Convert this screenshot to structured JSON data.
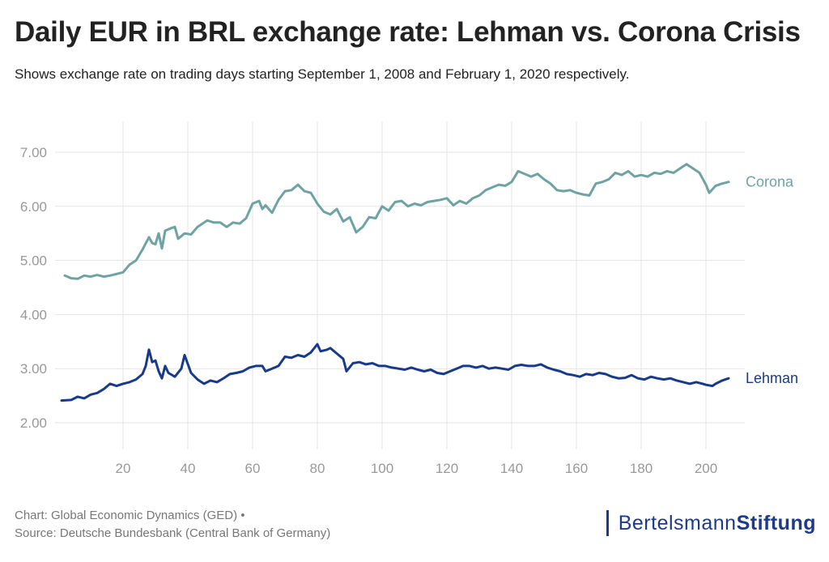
{
  "header": {
    "title": "Daily EUR in BRL exchange rate: Lehman vs. Corona Crisis",
    "subtitle": "Shows exchange rate on trading days starting September 1, 2008 and February 1, 2020 respectively."
  },
  "footer": {
    "credit": "Chart: Global Economic Dynamics (GED) •",
    "source": "Source: Deutsche Bundesbank (Central Bank of Germany)"
  },
  "logo": {
    "part1": "Bertelsmann",
    "part2": "Stiftung"
  },
  "colors": {
    "corona": "#6fa3a3",
    "lehman": "#173a8c",
    "grid": "#e3e3e3",
    "tick": "#999999"
  },
  "chart_data": {
    "type": "line",
    "title": "Daily EUR in BRL exchange rate: Lehman vs. Corona Crisis",
    "xlabel": "",
    "ylabel": "",
    "xlim": [
      0,
      210
    ],
    "ylim": [
      1.5,
      7.5
    ],
    "x_ticks": [
      20,
      40,
      60,
      80,
      100,
      120,
      140,
      160,
      180,
      200
    ],
    "y_ticks": [
      2.0,
      3.0,
      4.0,
      5.0,
      6.0,
      7.0
    ],
    "y_tick_labels": [
      "2.00",
      "3.00",
      "4.00",
      "5.00",
      "6.00",
      "7.00"
    ],
    "legend": "direct labels at line ends",
    "series": [
      {
        "name": "Corona",
        "keypoints": [
          [
            2,
            4.72
          ],
          [
            4,
            4.67
          ],
          [
            6,
            4.66
          ],
          [
            8,
            4.72
          ],
          [
            10,
            4.7
          ],
          [
            12,
            4.73
          ],
          [
            14,
            4.7
          ],
          [
            16,
            4.72
          ],
          [
            18,
            4.75
          ],
          [
            20,
            4.78
          ],
          [
            22,
            4.92
          ],
          [
            24,
            5.0
          ],
          [
            26,
            5.2
          ],
          [
            28,
            5.43
          ],
          [
            29,
            5.32
          ],
          [
            30,
            5.3
          ],
          [
            31,
            5.5
          ],
          [
            32,
            5.22
          ],
          [
            33,
            5.55
          ],
          [
            35,
            5.6
          ],
          [
            36,
            5.62
          ],
          [
            37,
            5.4
          ],
          [
            39,
            5.5
          ],
          [
            41,
            5.48
          ],
          [
            43,
            5.62
          ],
          [
            46,
            5.74
          ],
          [
            48,
            5.7
          ],
          [
            50,
            5.7
          ],
          [
            52,
            5.62
          ],
          [
            54,
            5.7
          ],
          [
            56,
            5.68
          ],
          [
            58,
            5.78
          ],
          [
            60,
            6.05
          ],
          [
            62,
            6.1
          ],
          [
            63,
            5.95
          ],
          [
            64,
            6.02
          ],
          [
            66,
            5.88
          ],
          [
            68,
            6.12
          ],
          [
            70,
            6.28
          ],
          [
            72,
            6.3
          ],
          [
            74,
            6.4
          ],
          [
            76,
            6.28
          ],
          [
            78,
            6.25
          ],
          [
            80,
            6.05
          ],
          [
            82,
            5.9
          ],
          [
            84,
            5.85
          ],
          [
            86,
            5.95
          ],
          [
            88,
            5.72
          ],
          [
            90,
            5.8
          ],
          [
            92,
            5.52
          ],
          [
            94,
            5.62
          ],
          [
            96,
            5.8
          ],
          [
            98,
            5.78
          ],
          [
            100,
            6.0
          ],
          [
            102,
            5.92
          ],
          [
            104,
            6.08
          ],
          [
            106,
            6.1
          ],
          [
            108,
            6.0
          ],
          [
            110,
            6.05
          ],
          [
            112,
            6.02
          ],
          [
            114,
            6.08
          ],
          [
            116,
            6.1
          ],
          [
            118,
            6.12
          ],
          [
            120,
            6.15
          ],
          [
            122,
            6.02
          ],
          [
            124,
            6.1
          ],
          [
            126,
            6.05
          ],
          [
            128,
            6.15
          ],
          [
            130,
            6.2
          ],
          [
            132,
            6.3
          ],
          [
            134,
            6.35
          ],
          [
            136,
            6.4
          ],
          [
            138,
            6.38
          ],
          [
            140,
            6.45
          ],
          [
            142,
            6.65
          ],
          [
            144,
            6.6
          ],
          [
            146,
            6.55
          ],
          [
            148,
            6.6
          ],
          [
            150,
            6.5
          ],
          [
            152,
            6.42
          ],
          [
            154,
            6.3
          ],
          [
            156,
            6.28
          ],
          [
            158,
            6.3
          ],
          [
            160,
            6.25
          ],
          [
            162,
            6.22
          ],
          [
            164,
            6.2
          ],
          [
            166,
            6.42
          ],
          [
            168,
            6.45
          ],
          [
            170,
            6.5
          ],
          [
            172,
            6.62
          ],
          [
            174,
            6.58
          ],
          [
            176,
            6.65
          ],
          [
            178,
            6.55
          ],
          [
            180,
            6.58
          ],
          [
            182,
            6.55
          ],
          [
            184,
            6.62
          ],
          [
            186,
            6.6
          ],
          [
            188,
            6.65
          ],
          [
            190,
            6.62
          ],
          [
            192,
            6.7
          ],
          [
            194,
            6.78
          ],
          [
            196,
            6.7
          ],
          [
            198,
            6.62
          ],
          [
            200,
            6.4
          ],
          [
            201,
            6.25
          ],
          [
            203,
            6.38
          ],
          [
            205,
            6.42
          ],
          [
            207,
            6.45
          ]
        ]
      },
      {
        "name": "Lehman",
        "keypoints": [
          [
            1,
            2.41
          ],
          [
            4,
            2.42
          ],
          [
            6,
            2.48
          ],
          [
            8,
            2.45
          ],
          [
            10,
            2.52
          ],
          [
            12,
            2.55
          ],
          [
            14,
            2.62
          ],
          [
            16,
            2.72
          ],
          [
            18,
            2.68
          ],
          [
            20,
            2.72
          ],
          [
            22,
            2.75
          ],
          [
            24,
            2.8
          ],
          [
            26,
            2.9
          ],
          [
            27,
            3.05
          ],
          [
            28,
            3.35
          ],
          [
            29,
            3.12
          ],
          [
            30,
            3.15
          ],
          [
            31,
            2.95
          ],
          [
            32,
            2.82
          ],
          [
            33,
            3.05
          ],
          [
            34,
            2.92
          ],
          [
            36,
            2.85
          ],
          [
            38,
            3.0
          ],
          [
            39,
            3.25
          ],
          [
            41,
            2.92
          ],
          [
            43,
            2.8
          ],
          [
            45,
            2.72
          ],
          [
            47,
            2.78
          ],
          [
            49,
            2.75
          ],
          [
            51,
            2.82
          ],
          [
            53,
            2.9
          ],
          [
            55,
            2.92
          ],
          [
            57,
            2.95
          ],
          [
            59,
            3.02
          ],
          [
            61,
            3.05
          ],
          [
            63,
            3.05
          ],
          [
            64,
            2.95
          ],
          [
            66,
            3.0
          ],
          [
            68,
            3.05
          ],
          [
            70,
            3.22
          ],
          [
            72,
            3.2
          ],
          [
            74,
            3.25
          ],
          [
            76,
            3.22
          ],
          [
            78,
            3.3
          ],
          [
            80,
            3.45
          ],
          [
            81,
            3.32
          ],
          [
            83,
            3.35
          ],
          [
            84,
            3.38
          ],
          [
            86,
            3.28
          ],
          [
            88,
            3.18
          ],
          [
            89,
            2.95
          ],
          [
            91,
            3.1
          ],
          [
            93,
            3.12
          ],
          [
            95,
            3.08
          ],
          [
            97,
            3.1
          ],
          [
            99,
            3.05
          ],
          [
            101,
            3.05
          ],
          [
            103,
            3.02
          ],
          [
            105,
            3.0
          ],
          [
            107,
            2.98
          ],
          [
            109,
            3.02
          ],
          [
            111,
            2.98
          ],
          [
            113,
            2.95
          ],
          [
            115,
            2.98
          ],
          [
            117,
            2.92
          ],
          [
            119,
            2.9
          ],
          [
            121,
            2.95
          ],
          [
            123,
            3.0
          ],
          [
            125,
            3.05
          ],
          [
            127,
            3.05
          ],
          [
            129,
            3.02
          ],
          [
            131,
            3.05
          ],
          [
            133,
            3.0
          ],
          [
            135,
            3.02
          ],
          [
            137,
            3.0
          ],
          [
            139,
            2.98
          ],
          [
            141,
            3.05
          ],
          [
            143,
            3.07
          ],
          [
            145,
            3.05
          ],
          [
            147,
            3.05
          ],
          [
            149,
            3.08
          ],
          [
            151,
            3.02
          ],
          [
            153,
            2.98
          ],
          [
            155,
            2.95
          ],
          [
            157,
            2.9
          ],
          [
            159,
            2.88
          ],
          [
            161,
            2.85
          ],
          [
            163,
            2.9
          ],
          [
            165,
            2.88
          ],
          [
            167,
            2.92
          ],
          [
            169,
            2.9
          ],
          [
            171,
            2.85
          ],
          [
            173,
            2.82
          ],
          [
            175,
            2.83
          ],
          [
            177,
            2.88
          ],
          [
            179,
            2.82
          ],
          [
            181,
            2.8
          ],
          [
            183,
            2.85
          ],
          [
            185,
            2.82
          ],
          [
            187,
            2.8
          ],
          [
            189,
            2.82
          ],
          [
            191,
            2.78
          ],
          [
            193,
            2.75
          ],
          [
            195,
            2.72
          ],
          [
            197,
            2.75
          ],
          [
            199,
            2.72
          ],
          [
            200,
            2.7
          ],
          [
            202,
            2.68
          ],
          [
            203,
            2.72
          ],
          [
            205,
            2.78
          ],
          [
            207,
            2.82
          ]
        ]
      }
    ]
  }
}
